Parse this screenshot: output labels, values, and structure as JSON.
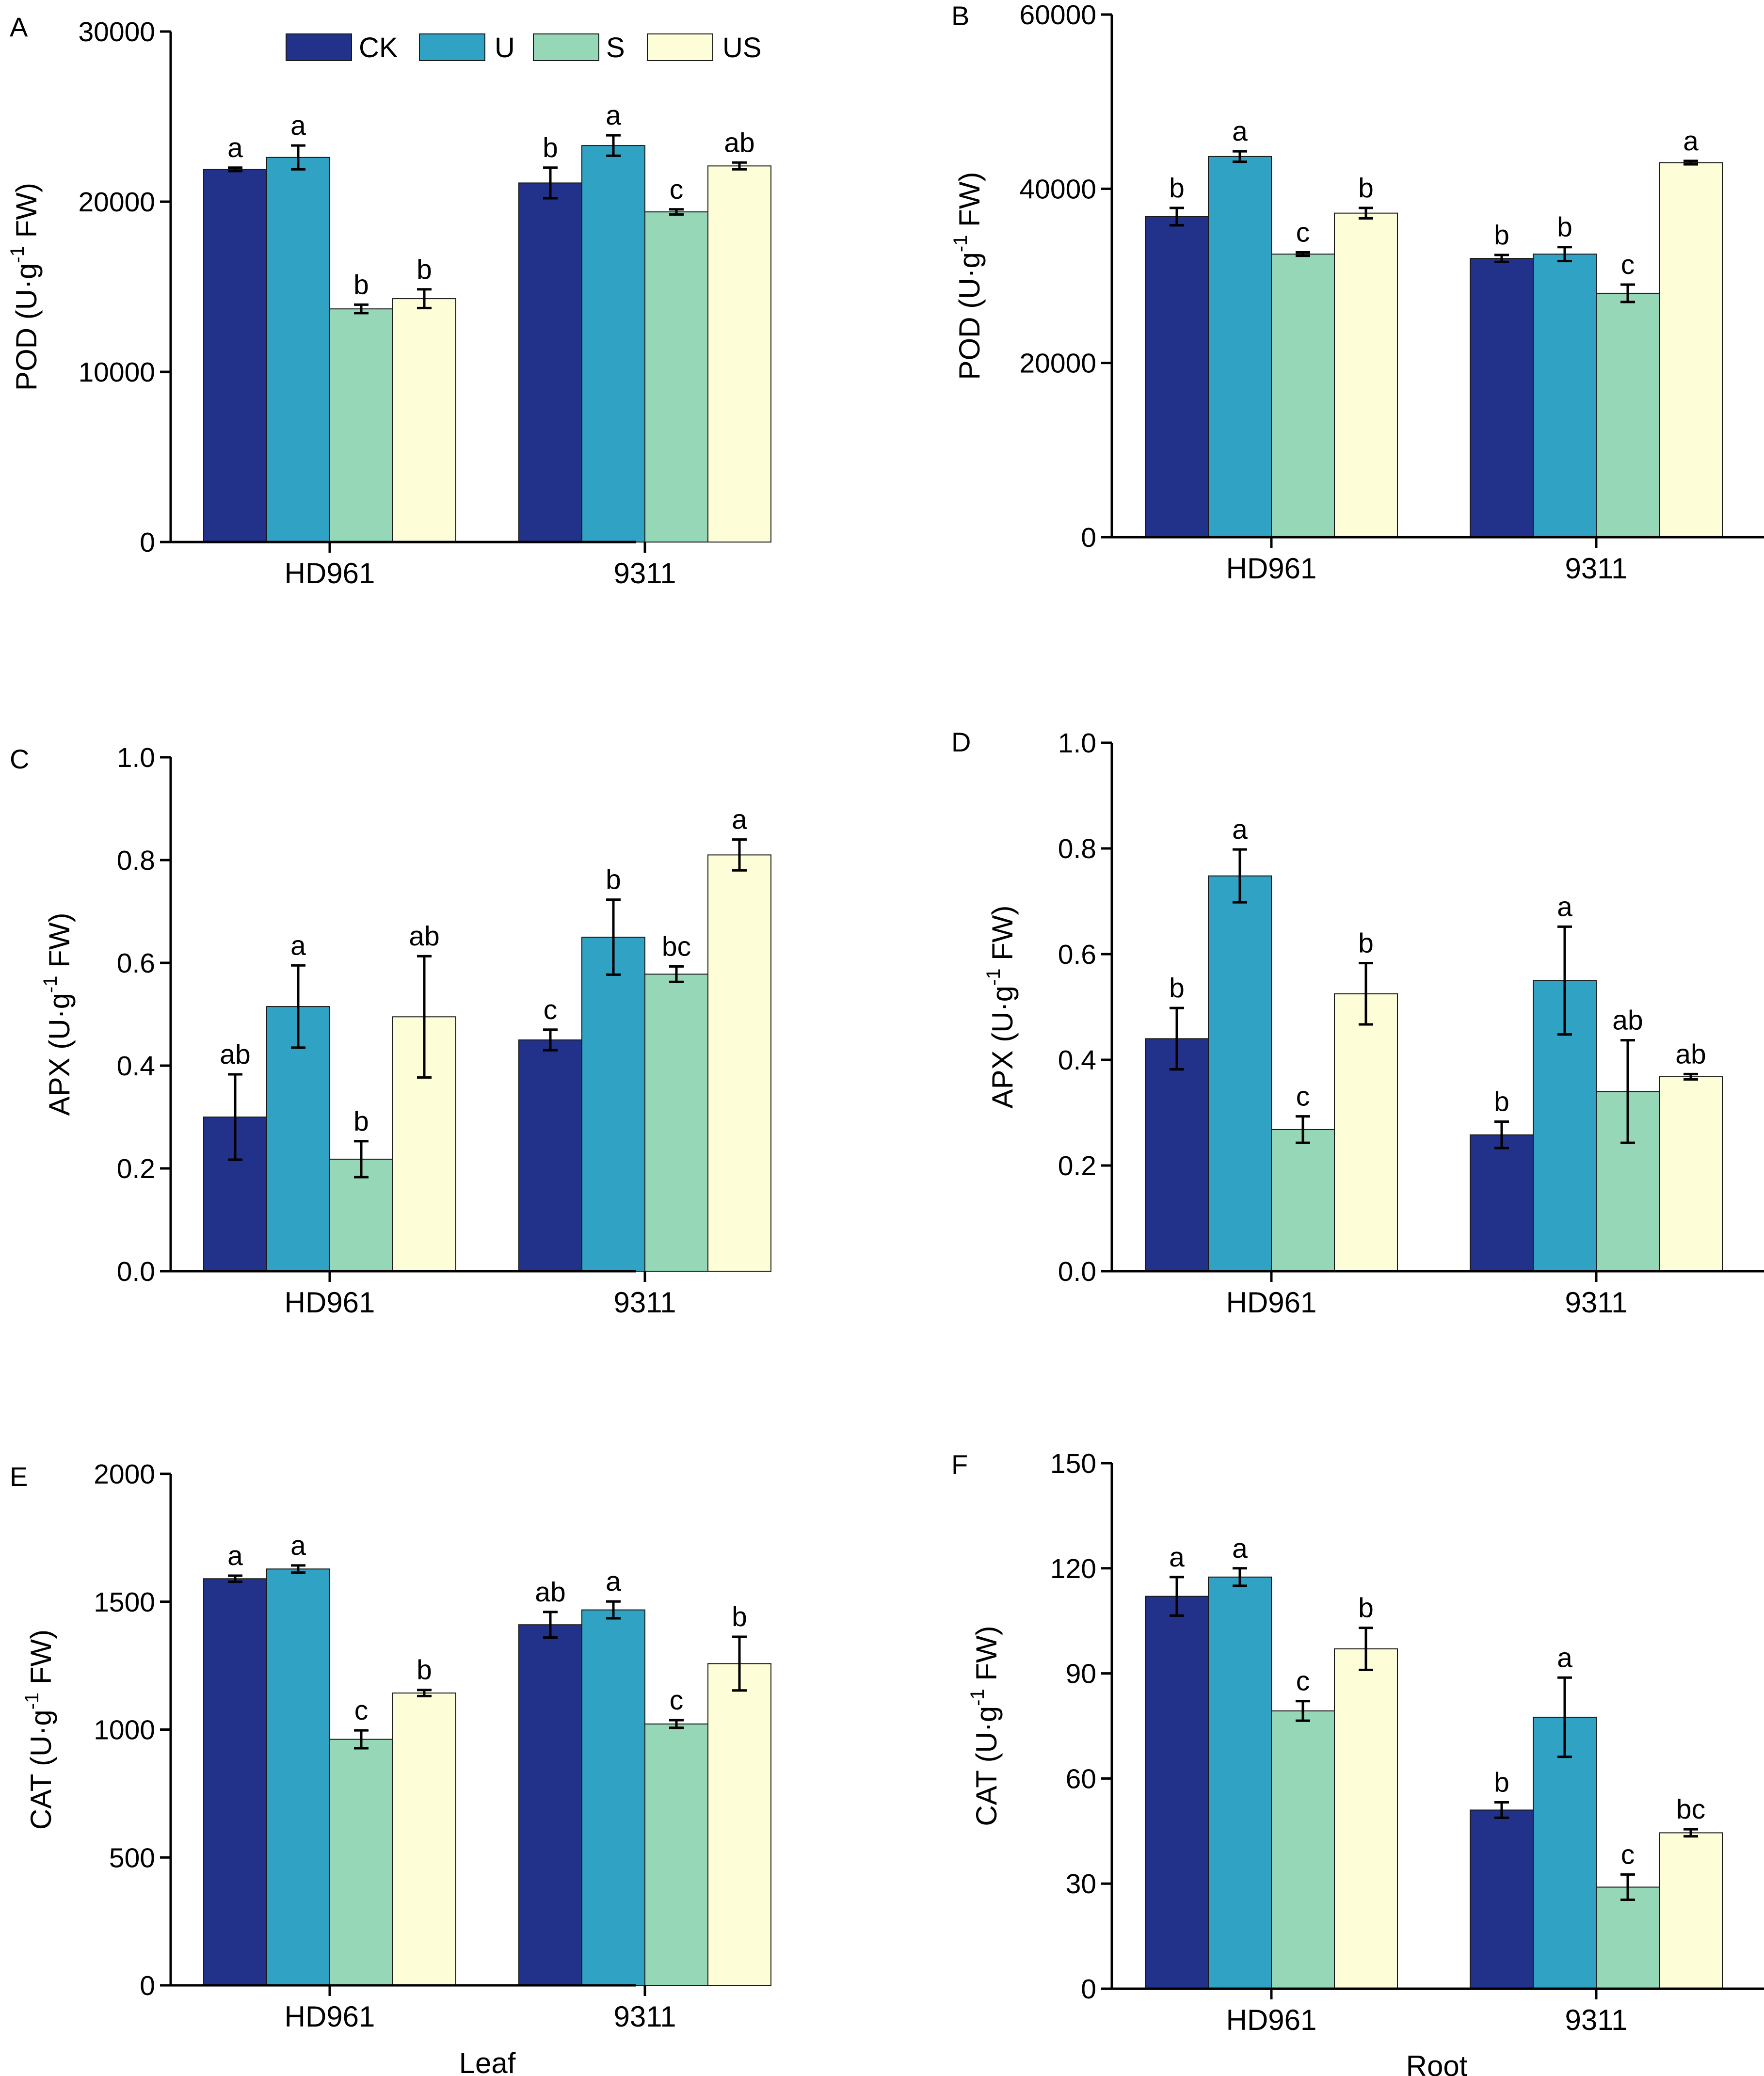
{
  "colors": {
    "CK": "#22318a",
    "U": "#30a2c3",
    "S": "#96d7b7",
    "US": "#fdfdd8"
  },
  "legend": {
    "items": [
      "CK",
      "U",
      "S",
      "US"
    ]
  },
  "xlabels": {
    "leaf": "Leaf",
    "root": "Root"
  },
  "chart_data": [
    {
      "panel": "A",
      "type": "bar",
      "ylabel": "POD (U·g-1 FW)",
      "ylabel_main": "POD (U·g",
      "ylabel_sup": "-1",
      "ylabel_tail": " FW)",
      "ylim": [
        0,
        30000
      ],
      "yticks": [
        0,
        10000,
        20000,
        30000
      ],
      "ytick_labels": [
        "0",
        "10000",
        "20000",
        "30000"
      ],
      "categories": [
        "HD961",
        "9311"
      ],
      "series": [
        {
          "name": "CK",
          "values": [
            21900,
            21100
          ],
          "errors": [
            100,
            900
          ],
          "labels": [
            "a",
            "b"
          ]
        },
        {
          "name": "U",
          "values": [
            22600,
            23300
          ],
          "errors": [
            700,
            600
          ],
          "labels": [
            "a",
            "a"
          ]
        },
        {
          "name": "S",
          "values": [
            13700,
            19400
          ],
          "errors": [
            250,
            150
          ],
          "labels": [
            "b",
            "c"
          ]
        },
        {
          "name": "US",
          "values": [
            14300,
            22100
          ],
          "errors": [
            550,
            200
          ],
          "labels": [
            "b",
            "ab"
          ]
        }
      ]
    },
    {
      "panel": "B",
      "type": "bar",
      "ylabel": "POD (U·g-1 FW)",
      "ylabel_main": "POD (U·g",
      "ylabel_sup": "-1",
      "ylabel_tail": " FW)",
      "ylim": [
        0,
        60000
      ],
      "yticks": [
        0,
        20000,
        40000,
        60000
      ],
      "ytick_labels": [
        "0",
        "20000",
        "40000",
        "60000"
      ],
      "categories": [
        "HD961",
        "9311"
      ],
      "series": [
        {
          "name": "CK",
          "values": [
            36800,
            32000
          ],
          "errors": [
            1000,
            400
          ],
          "labels": [
            "b",
            "b"
          ]
        },
        {
          "name": "U",
          "values": [
            43700,
            32500
          ],
          "errors": [
            600,
            800
          ],
          "labels": [
            "a",
            "b"
          ]
        },
        {
          "name": "S",
          "values": [
            32500,
            28000
          ],
          "errors": [
            200,
            1000
          ],
          "labels": [
            "c",
            "c"
          ]
        },
        {
          "name": "US",
          "values": [
            37200,
            43000
          ],
          "errors": [
            600,
            200
          ],
          "labels": [
            "b",
            "a"
          ]
        }
      ]
    },
    {
      "panel": "C",
      "type": "bar",
      "ylabel": "APX (U·g-1 FW)",
      "ylabel_main": "APX (U·g",
      "ylabel_sup": "-1",
      "ylabel_tail": " FW)",
      "ylim": [
        0,
        1.0
      ],
      "yticks": [
        0,
        0.2,
        0.4,
        0.6,
        0.8,
        1.0
      ],
      "ytick_labels": [
        "0.0",
        "0.2",
        "0.4",
        "0.6",
        "0.8",
        "1.0"
      ],
      "categories": [
        "HD961",
        "9311"
      ],
      "series": [
        {
          "name": "CK",
          "values": [
            0.3,
            0.45
          ],
          "errors": [
            0.083,
            0.02
          ],
          "labels": [
            "ab",
            "c"
          ]
        },
        {
          "name": "U",
          "values": [
            0.515,
            0.65
          ],
          "errors": [
            0.08,
            0.073
          ],
          "labels": [
            "a",
            "b"
          ]
        },
        {
          "name": "S",
          "values": [
            0.218,
            0.578
          ],
          "errors": [
            0.035,
            0.015
          ],
          "labels": [
            "b",
            "bc"
          ]
        },
        {
          "name": "US",
          "values": [
            0.495,
            0.81
          ],
          "errors": [
            0.118,
            0.03
          ],
          "labels": [
            "ab",
            "a"
          ]
        }
      ]
    },
    {
      "panel": "D",
      "type": "bar",
      "ylabel": "APX (U·g-1 FW)",
      "ylabel_main": "APX (U·g",
      "ylabel_sup": "-1",
      "ylabel_tail": " FW)",
      "ylim": [
        0,
        1.0
      ],
      "yticks": [
        0,
        0.2,
        0.4,
        0.6,
        0.8,
        1.0
      ],
      "ytick_labels": [
        "0.0",
        "0.2",
        "0.4",
        "0.6",
        "0.8",
        "1.0"
      ],
      "categories": [
        "HD961",
        "9311"
      ],
      "series": [
        {
          "name": "CK",
          "values": [
            0.44,
            0.258
          ],
          "errors": [
            0.058,
            0.025
          ],
          "labels": [
            "b",
            "b"
          ]
        },
        {
          "name": "U",
          "values": [
            0.748,
            0.55
          ],
          "errors": [
            0.05,
            0.102
          ],
          "labels": [
            "a",
            "a"
          ]
        },
        {
          "name": "S",
          "values": [
            0.268,
            0.34
          ],
          "errors": [
            0.025,
            0.097
          ],
          "labels": [
            "c",
            "ab"
          ]
        },
        {
          "name": "US",
          "values": [
            0.525,
            0.368
          ],
          "errors": [
            0.058,
            0.005
          ],
          "labels": [
            "b",
            "ab"
          ]
        }
      ]
    },
    {
      "panel": "E",
      "type": "bar",
      "ylabel": "CAT (U·g-1 FW)",
      "ylabel_main": "CAT (U·g",
      "ylabel_sup": "-1",
      "ylabel_tail": " FW)",
      "ylim": [
        0,
        2000
      ],
      "yticks": [
        0,
        500,
        1000,
        1500,
        2000
      ],
      "ytick_labels": [
        "0",
        "500",
        "1000",
        "1500",
        "2000"
      ],
      "categories": [
        "HD961",
        "9311"
      ],
      "series": [
        {
          "name": "CK",
          "values": [
            1590,
            1410
          ],
          "errors": [
            12,
            50
          ],
          "labels": [
            "a",
            "ab"
          ]
        },
        {
          "name": "U",
          "values": [
            1628,
            1468
          ],
          "errors": [
            14,
            33
          ],
          "labels": [
            "a",
            "a"
          ]
        },
        {
          "name": "S",
          "values": [
            962,
            1022
          ],
          "errors": [
            35,
            15
          ],
          "labels": [
            "c",
            "c"
          ]
        },
        {
          "name": "US",
          "values": [
            1143,
            1258
          ],
          "errors": [
            12,
            105
          ],
          "labels": [
            "b",
            "b"
          ]
        }
      ]
    },
    {
      "panel": "F",
      "type": "bar",
      "ylabel": "CAT (U·g-1 FW)",
      "ylabel_main": "CAT (U·g",
      "ylabel_sup": "-1",
      "ylabel_tail": " FW)",
      "ylim": [
        0,
        150
      ],
      "yticks": [
        0,
        30,
        60,
        90,
        120,
        150
      ],
      "ytick_labels": [
        "0",
        "30",
        "60",
        "90",
        "120",
        "150"
      ],
      "categories": [
        "HD961",
        "9311"
      ],
      "series": [
        {
          "name": "CK",
          "values": [
            112,
            51
          ],
          "errors": [
            5.5,
            2.2
          ],
          "labels": [
            "a",
            "b"
          ]
        },
        {
          "name": "U",
          "values": [
            117.5,
            77.5
          ],
          "errors": [
            2.5,
            11.3
          ],
          "labels": [
            "a",
            "a"
          ]
        },
        {
          "name": "S",
          "values": [
            79.3,
            29
          ],
          "errors": [
            2.8,
            3.6
          ],
          "labels": [
            "c",
            "c"
          ]
        },
        {
          "name": "US",
          "values": [
            97,
            44.5
          ],
          "errors": [
            6,
            1
          ],
          "labels": [
            "b",
            "bc"
          ]
        }
      ]
    }
  ]
}
